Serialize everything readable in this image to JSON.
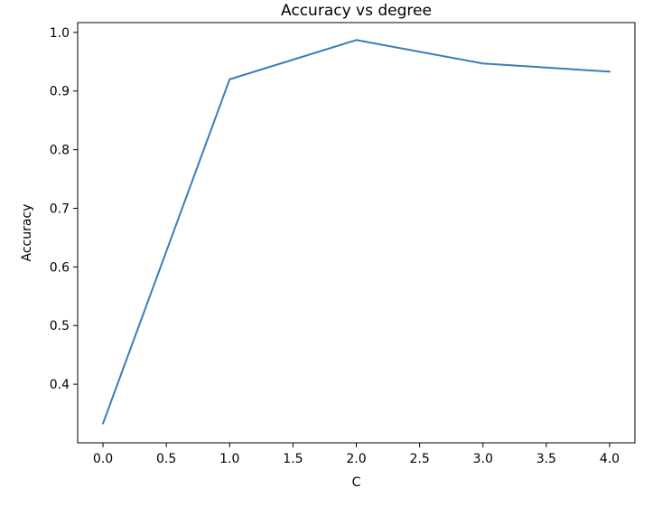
{
  "chart_data": {
    "type": "line",
    "title": "Accuracy vs degree",
    "xlabel": "C",
    "ylabel": "Accuracy",
    "x": [
      0,
      1,
      2,
      3,
      4
    ],
    "series": [
      {
        "values": [
          0.333,
          0.92,
          0.987,
          0.947,
          0.933
        ],
        "color": "#3b7db8"
      }
    ],
    "xlim": [
      -0.2,
      4.2
    ],
    "ylim": [
      0.3,
      1.0167
    ],
    "xticks": [
      0.0,
      0.5,
      1.0,
      1.5,
      2.0,
      2.5,
      3.0,
      3.5,
      4.0
    ],
    "xtick_labels": [
      "0.0",
      "0.5",
      "1.0",
      "1.5",
      "2.0",
      "2.5",
      "3.0",
      "3.5",
      "4.0"
    ],
    "yticks": [
      0.4,
      0.5,
      0.6,
      0.7,
      0.8,
      0.9,
      1.0
    ],
    "ytick_labels": [
      "0.4",
      "0.5",
      "0.6",
      "0.7",
      "0.8",
      "0.9",
      "1.0"
    ],
    "grid": false,
    "legend": false
  }
}
